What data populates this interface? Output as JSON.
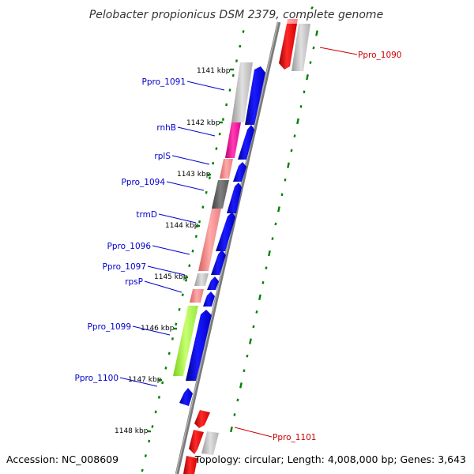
{
  "title": "Pelobacter propionicus DSM 2379, complete genome",
  "accession": "Accession: NC_008609",
  "summary": "Topology: circular; Length: 4,008,000 bp; Genes: 3,643",
  "colors": {
    "reverse_label": "#0000cc",
    "forward_label": "#cc0000",
    "blue_gene": "#0000ff",
    "red_gene": "#ff0000",
    "tick_green": "#008000",
    "backbone": "#808080"
  },
  "kbp_ticks": [
    "1141 kbp",
    "1142 kbp",
    "1143 kbp",
    "1144 kbp",
    "1145 kbp",
    "1146 kbp",
    "1147 kbp",
    "1148 kbp"
  ],
  "gene_labels": [
    {
      "text": "Ppro_1090",
      "strand": "forward"
    },
    {
      "text": "Ppro_1091",
      "strand": "reverse"
    },
    {
      "text": "rnhB",
      "strand": "reverse"
    },
    {
      "text": "rplS",
      "strand": "reverse"
    },
    {
      "text": "Ppro_1094",
      "strand": "reverse"
    },
    {
      "text": "trmD",
      "strand": "reverse"
    },
    {
      "text": "Ppro_1096",
      "strand": "reverse"
    },
    {
      "text": "Ppro_1097",
      "strand": "reverse"
    },
    {
      "text": "rpsP",
      "strand": "reverse"
    },
    {
      "text": "Ppro_1099",
      "strand": "reverse"
    },
    {
      "text": "Ppro_1100",
      "strand": "reverse"
    },
    {
      "text": "Ppro_1101",
      "strand": "forward"
    }
  ],
  "gene_features": [
    {
      "name": "Ppro_1090",
      "cog_color": "#c8c8c8",
      "arrow": "red"
    },
    {
      "name": "Ppro_1091",
      "cog_color": "#c0c0c0",
      "arrow": "blue"
    },
    {
      "name": "rnhB",
      "cog_color": "#ff00a0",
      "arrow": "blue"
    },
    {
      "name": "rplS",
      "cog_color": "#f08080",
      "arrow": "blue"
    },
    {
      "name": "Ppro_1094",
      "cog_color": "#606060",
      "arrow": "blue"
    },
    {
      "name": "trmD",
      "cog_color": "#f08080",
      "arrow": "blue"
    },
    {
      "name": "Ppro_1096",
      "cog_color": "#f08080",
      "arrow": "blue"
    },
    {
      "name": "Ppro_1097",
      "cog_color": "#c0c0c0",
      "arrow": "blue"
    },
    {
      "name": "rpsP",
      "cog_color": "#f08080",
      "arrow": "blue"
    },
    {
      "name": "Ppro_1099",
      "cog_color": "#a0ff30",
      "arrow": "blue"
    },
    {
      "name": "Ppro_1100",
      "cog_color": "",
      "arrow": "blue"
    },
    {
      "name": "Ppro_1101",
      "cog_color": "#c8c8c8",
      "arrow": "red"
    }
  ]
}
